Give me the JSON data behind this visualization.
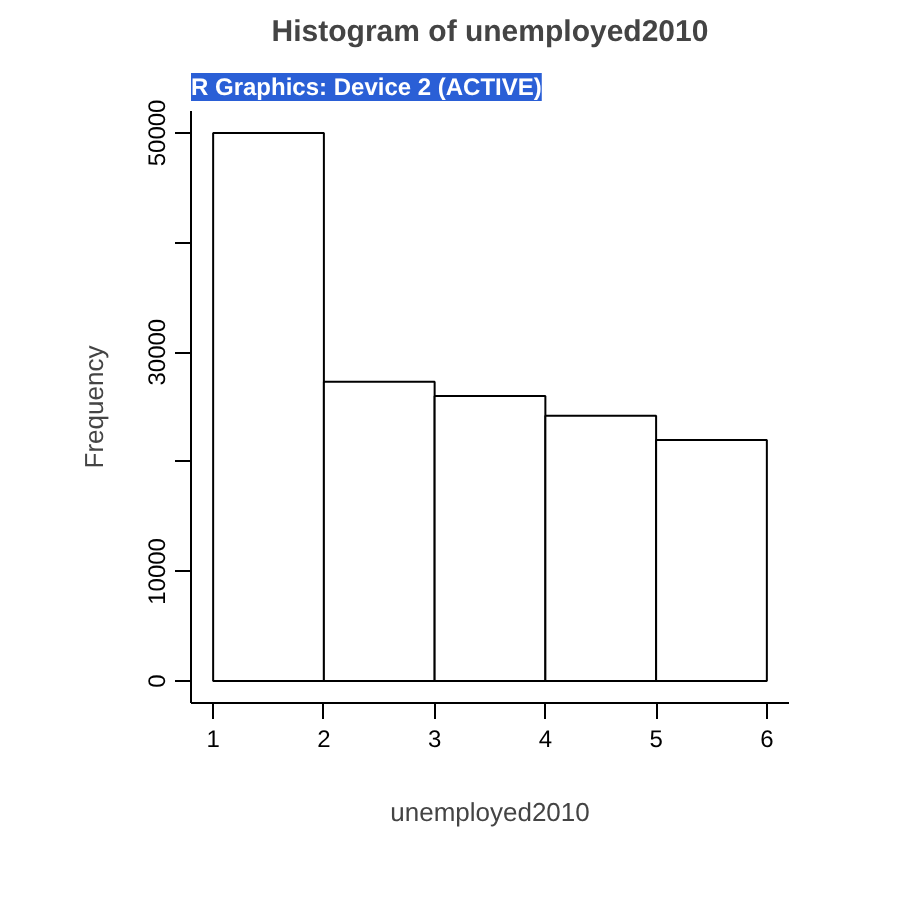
{
  "chart_data": {
    "type": "histogram",
    "title": "Histogram of unemployed2010",
    "xlabel": "unemployed2010",
    "ylabel": "Frequency",
    "annotations": [
      "R Graphics: Device 2 (ACTIVE)"
    ],
    "bins": [
      1,
      2,
      3,
      4,
      5,
      6
    ],
    "values": [
      50000,
      27300,
      26000,
      24200,
      22000
    ],
    "color": "#ffffff",
    "xlim": [
      0.8,
      6.2
    ],
    "xticks": [
      1,
      2,
      3,
      4,
      5,
      6
    ],
    "ylim": [
      -2000,
      52000
    ],
    "yticks": [
      0,
      10000,
      {
        "value": 20000,
        "label": null
      },
      30000,
      {
        "value": 40000,
        "label": null
      },
      50000
    ],
    "grid": false
  }
}
